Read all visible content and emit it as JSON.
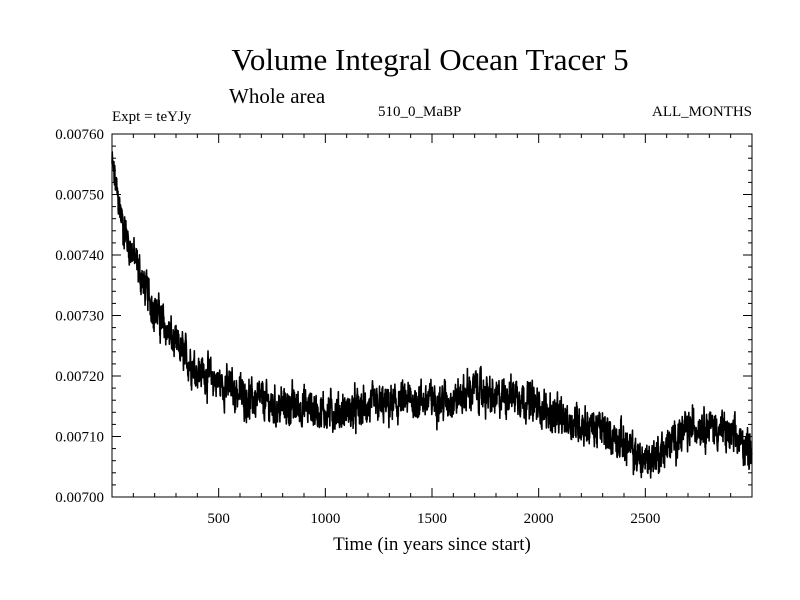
{
  "chart_data": {
    "type": "line",
    "title": "Volume Integral Ocean Tracer 5",
    "subtitle": "Whole area",
    "header_left": "Expt = teYJy",
    "header_center": "510_0_MaBP",
    "header_right": "ALL_MONTHS",
    "xlabel": "Time (in years since start)",
    "ylabel": "",
    "xlim": [
      0,
      3000
    ],
    "ylim": [
      0.007,
      0.0076
    ],
    "x_ticks": [
      500,
      1000,
      1500,
      2000,
      2500
    ],
    "x_tick_labels": [
      "500",
      "1000",
      "1500",
      "2000",
      "2500"
    ],
    "y_ticks": [
      0.007,
      0.0071,
      0.0072,
      0.0073,
      0.0074,
      0.0075,
      0.0076
    ],
    "y_tick_labels": [
      "0.00700",
      "0.00710",
      "0.00720",
      "0.00730",
      "0.00740",
      "0.00750",
      "0.00760"
    ],
    "grid": false,
    "series": [
      {
        "name": "Volume Integral Ocean Tracer 5",
        "color": "#000000",
        "x": [
          0,
          25,
          50,
          100,
          150,
          200,
          250,
          300,
          350,
          400,
          450,
          500,
          550,
          600,
          650,
          700,
          750,
          800,
          900,
          1000,
          1100,
          1200,
          1300,
          1400,
          1500,
          1600,
          1650,
          1700,
          1750,
          1800,
          1850,
          1900,
          1950,
          2000,
          2100,
          2200,
          2300,
          2400,
          2450,
          2500,
          2550,
          2600,
          2650,
          2700,
          2750,
          2800,
          2850,
          2900,
          2950,
          3000
        ],
        "y": [
          0.00755,
          0.0075,
          0.00745,
          0.0074,
          0.00735,
          0.00731,
          0.00728,
          0.00725,
          0.00723,
          0.00721,
          0.0072,
          0.00719,
          0.00718,
          0.00717,
          0.00716,
          0.00716,
          0.00715,
          0.00715,
          0.00715,
          0.00714,
          0.00714,
          0.00715,
          0.00715,
          0.00716,
          0.00716,
          0.00716,
          0.00717,
          0.00718,
          0.00717,
          0.00716,
          0.00717,
          0.00717,
          0.00716,
          0.00715,
          0.00713,
          0.00712,
          0.00711,
          0.00709,
          0.00707,
          0.00706,
          0.00707,
          0.00708,
          0.0071,
          0.00711,
          0.00712,
          0.00712,
          0.00711,
          0.0071,
          0.00709,
          0.00708
        ],
        "noise_amplitude": 2.8e-05
      }
    ]
  }
}
